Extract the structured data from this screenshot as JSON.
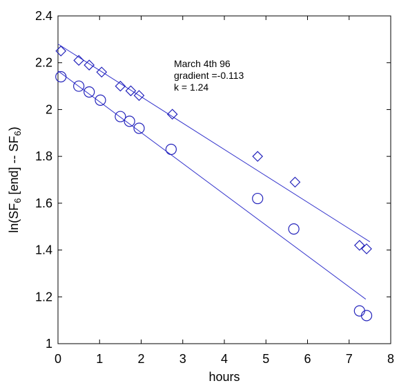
{
  "chart_data": {
    "type": "scatter",
    "title": "",
    "xlabel": "hours",
    "ylabel": {
      "prefix": "ln(SF",
      "sub1": "6",
      "middle": " [end] -- SF",
      "sub2": "6",
      "suffix": ")"
    },
    "xlim": [
      0,
      8
    ],
    "ylim": [
      1,
      2.4
    ],
    "xticks": [
      "0",
      "1",
      "2",
      "3",
      "4",
      "5",
      "6",
      "7",
      "8"
    ],
    "yticks": [
      "1",
      "1.2",
      "1.4",
      "1.6",
      "1.8",
      "2",
      "2.2",
      "2.4"
    ],
    "grid": false,
    "legend": "none",
    "annotations": [
      "March 4th 96",
      "gradient =-0.113",
      "k = 1.24"
    ],
    "colors": {
      "fit_line": "#3333cc",
      "markers": "#2222bb",
      "axes": "#000000"
    },
    "series": [
      {
        "marker": "diamond",
        "x": [
          0.07,
          0.5,
          0.75,
          1.05,
          1.5,
          1.75,
          1.95,
          2.75,
          4.8,
          5.7,
          7.25,
          7.42
        ],
        "y": [
          2.25,
          2.21,
          2.19,
          2.16,
          2.1,
          2.08,
          2.06,
          1.98,
          1.8,
          1.69,
          1.42,
          1.405
        ],
        "fit": {
          "x": [
            0,
            7.5
          ],
          "y": [
            2.28,
            1.435
          ]
        }
      },
      {
        "marker": "circle",
        "x": [
          0.07,
          0.5,
          0.75,
          1.02,
          1.5,
          1.72,
          1.95,
          2.72,
          4.8,
          5.67,
          7.25,
          7.42
        ],
        "y": [
          2.14,
          2.1,
          2.075,
          2.04,
          1.97,
          1.95,
          1.92,
          1.83,
          1.62,
          1.49,
          1.14,
          1.12
        ],
        "fit": {
          "x": [
            0,
            7.4
          ],
          "y": [
            2.165,
            1.19
          ]
        }
      }
    ]
  }
}
